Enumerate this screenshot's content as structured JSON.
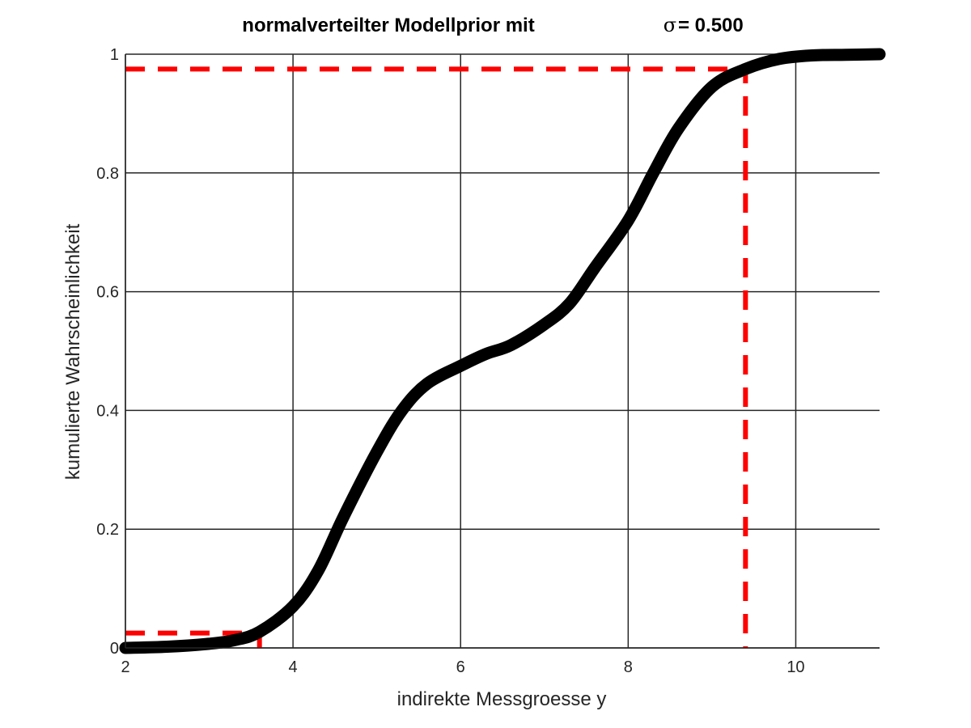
{
  "chart_data": {
    "type": "line",
    "title": "normalverteilter Modellprior mit",
    "title_symbol": "σ",
    "title_value": " = 0.500",
    "xlabel": "indirekte Messgroesse y",
    "ylabel": "kumulierte Wahrscheinlichkeit",
    "xlim": [
      2,
      11
    ],
    "ylim": [
      0,
      1
    ],
    "xticks": [
      2,
      4,
      6,
      8,
      10
    ],
    "xtick_labels": [
      "2",
      "4",
      "6",
      "8",
      "10"
    ],
    "yticks": [
      0,
      0.2,
      0.4,
      0.6,
      0.8,
      1
    ],
    "ytick_labels": [
      "0",
      "0.2",
      "0.4",
      "0.6",
      "0.8",
      "1"
    ],
    "grid": true,
    "series": [
      {
        "color": "#000000",
        "x": [
          2.0,
          2.5,
          3.0,
          3.3,
          3.6,
          4.0,
          4.3,
          4.6,
          5.0,
          5.3,
          5.6,
          6.0,
          6.3,
          6.6,
          7.0,
          7.3,
          7.6,
          8.0,
          8.3,
          8.6,
          9.0,
          9.4,
          9.8,
          10.2,
          10.6,
          11.0
        ],
        "y": [
          0.0,
          0.002,
          0.007,
          0.013,
          0.027,
          0.07,
          0.13,
          0.22,
          0.33,
          0.4,
          0.445,
          0.475,
          0.495,
          0.51,
          0.545,
          0.58,
          0.64,
          0.72,
          0.8,
          0.875,
          0.945,
          0.975,
          0.992,
          0.998,
          0.999,
          1.0
        ]
      }
    ],
    "reference_lines": {
      "color": "#ff0000",
      "lower": {
        "x": 3.6,
        "y": 0.025
      },
      "upper": {
        "x": 9.4,
        "y": 0.975
      }
    }
  }
}
